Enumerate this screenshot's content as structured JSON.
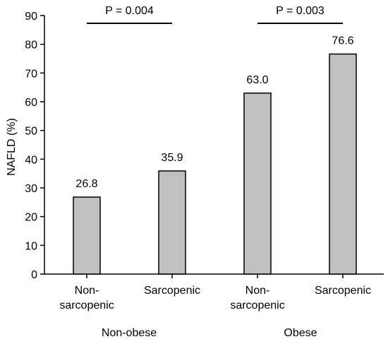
{
  "chart_data": {
    "type": "bar",
    "ylabel": "NAFLD (%)",
    "ylim": [
      0,
      90
    ],
    "yticks": [
      0,
      10,
      20,
      30,
      40,
      50,
      60,
      70,
      80,
      90
    ],
    "categories": [
      {
        "lines": [
          "Non-",
          "sarcopenic"
        ],
        "group": 0
      },
      {
        "lines": [
          "Sarcopenic"
        ],
        "group": 0
      },
      {
        "lines": [
          "Non-",
          "sarcopenic"
        ],
        "group": 1
      },
      {
        "lines": [
          "Sarcopenic"
        ],
        "group": 1
      }
    ],
    "values": [
      26.8,
      35.9,
      63.0,
      76.6
    ],
    "data_labels": [
      "26.8",
      "35.9",
      "63.0",
      "76.6"
    ],
    "groups": [
      "Non-obese",
      "Obese"
    ],
    "comparisons": [
      {
        "group": 0,
        "label": "P = 0.004"
      },
      {
        "group": 1,
        "label": "P = 0.003"
      }
    ],
    "bar_color": "#c0c0c0",
    "bar_edge_color": "#000000",
    "grid": false
  }
}
